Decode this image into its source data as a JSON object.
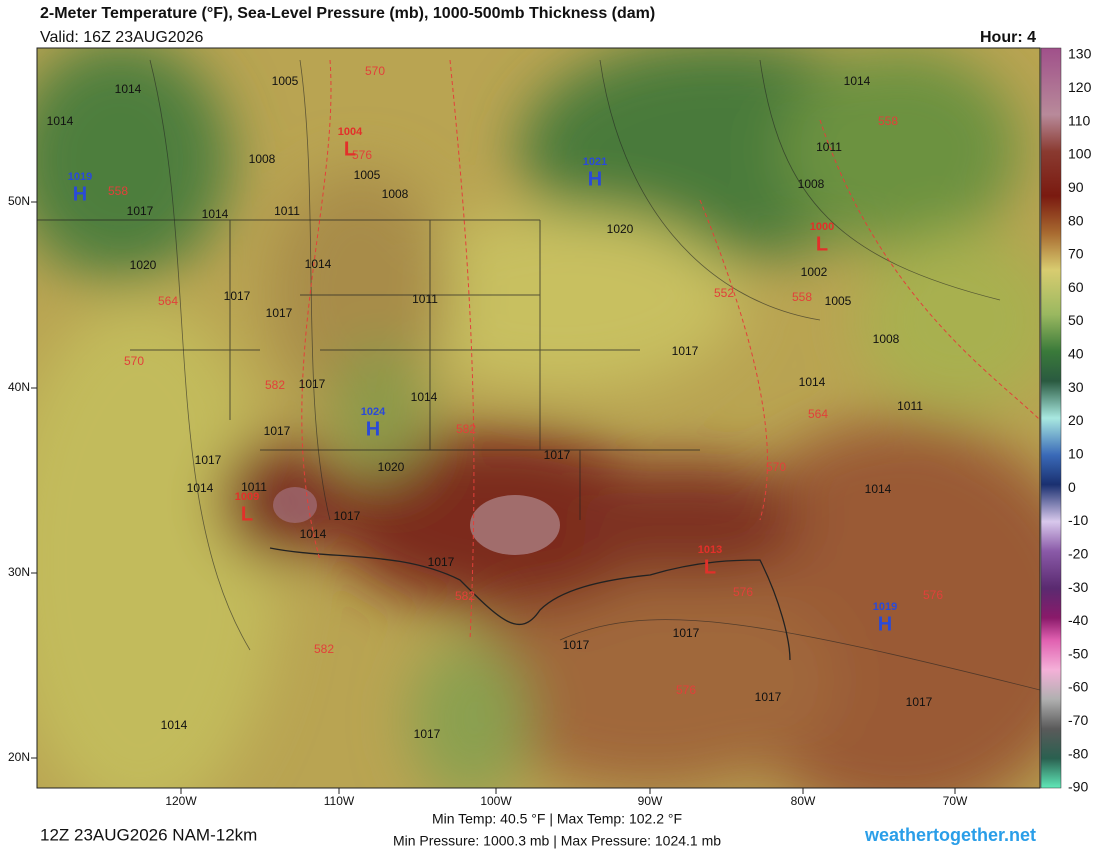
{
  "header": {
    "title": "2-Meter Temperature (°F), Sea-Level Pressure (mb), 1000-500mb Thickness (dam)",
    "valid": "Valid: 16Z 23AUG2026",
    "hour": "Hour: 4"
  },
  "map": {
    "lat_labels": [
      "50N",
      "40N",
      "30N",
      "20N"
    ],
    "lon_labels": [
      "120W",
      "110W",
      "100W",
      "90W",
      "80W",
      "70W"
    ],
    "pressure_centers": [
      {
        "letter": "H",
        "pressure": 1019,
        "color": "#2a4ad8"
      },
      {
        "letter": "L",
        "pressure": 1004,
        "color": "#e2302a"
      },
      {
        "letter": "H",
        "pressure": 1021,
        "color": "#2a4ad8"
      },
      {
        "letter": "L",
        "pressure": 1000,
        "color": "#e2302a"
      },
      {
        "letter": "H",
        "pressure": 1024,
        "color": "#2a4ad8"
      },
      {
        "letter": "L",
        "pressure": 1009,
        "color": "#e2302a"
      },
      {
        "letter": "L",
        "pressure": 1013,
        "color": "#e2302a"
      },
      {
        "letter": "H",
        "pressure": 1019,
        "color": "#2a4ad8"
      }
    ],
    "isobar_labels": [
      1005,
      1014,
      1014,
      1008,
      1005,
      1008,
      1014,
      1011,
      1017,
      1020,
      1014,
      1017,
      1017,
      1011,
      1017,
      1014,
      1017,
      1017,
      1011,
      1014,
      1014,
      1017,
      1020,
      1017,
      1017,
      1017,
      1017,
      1017,
      1017,
      1014,
      1017,
      1014,
      1011,
      1014,
      1008,
      1005,
      1002,
      1008,
      1011,
      1014,
      1020,
      1017
    ],
    "thickness_labels": [
      570,
      576,
      558,
      558,
      564,
      570,
      582,
      582,
      564,
      570,
      552,
      558,
      582,
      582,
      576,
      576,
      576
    ]
  },
  "colorbar": {
    "ticks": [
      130,
      120,
      110,
      100,
      90,
      80,
      70,
      60,
      50,
      40,
      30,
      20,
      10,
      0,
      -10,
      -20,
      -30,
      -40,
      -50,
      -60,
      -70,
      -80,
      -90
    ]
  },
  "footer": {
    "run": "12Z 23AUG2026 NAM-12km",
    "temp_stats": "Min Temp:  40.5 °F | Max Temp: 102.2 °F",
    "pressure_stats": "Min Pressure: 1000.3 mb | Max Pressure: 1024.1 mb",
    "site": "weathertogether.net"
  }
}
